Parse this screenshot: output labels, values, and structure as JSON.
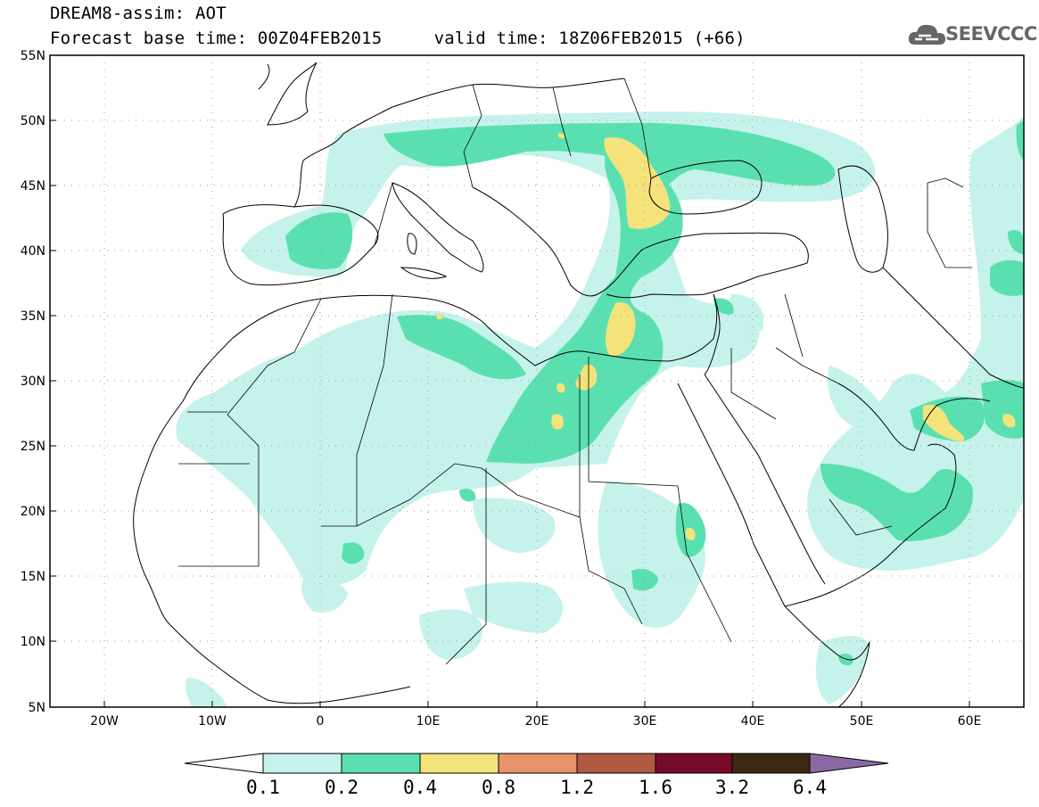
{
  "header": {
    "title_line1": "DREAM8-assim: AOT",
    "title_line2": "Forecast base time: 00Z04FEB2015     valid time: 18Z06FEB2015 (+66)"
  },
  "logo": {
    "text": "SEEVCCC",
    "icon": "cloud-icon",
    "color": "#666666"
  },
  "map": {
    "lon_range": [
      -25,
      65
    ],
    "lat_range": [
      5,
      55
    ],
    "lat_ticks": [
      "55N",
      "50N",
      "45N",
      "40N",
      "35N",
      "30N",
      "25N",
      "20N",
      "15N",
      "10N",
      "5N"
    ],
    "lon_ticks": [
      "20W",
      "10W",
      "0",
      "10E",
      "20E",
      "30E",
      "40E",
      "50E",
      "60E"
    ],
    "gridlines": "dotted"
  },
  "colorbar": {
    "labels": [
      "0.1",
      "0.2",
      "0.4",
      "0.8",
      "1.2",
      "1.6",
      "3.2",
      "6.4"
    ],
    "colors": [
      "#c6f2ec",
      "#5ae0b0",
      "#f4e27a",
      "#e8946a",
      "#b05a44",
      "#780a2a",
      "#3c2814",
      "#8a6aa4"
    ],
    "low_end_color": "#ffffff"
  }
}
